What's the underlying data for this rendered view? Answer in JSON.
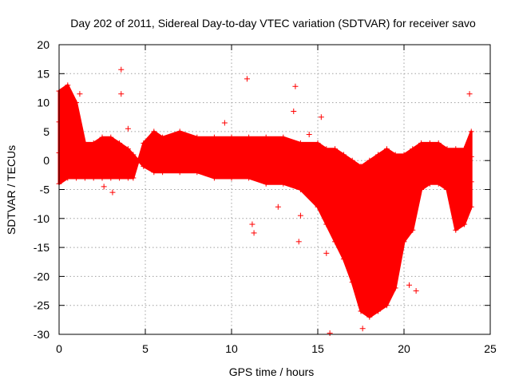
{
  "chart_data": {
    "type": "scatter",
    "title": "Day 202 of 2011, Sidereal Day-to-day VTEC variation (SDTVAR) for receiver savo",
    "xlabel": "GPS time / hours",
    "ylabel": "SDTVAR / TECUs",
    "xlim": [
      0,
      25
    ],
    "ylim": [
      -30,
      20
    ],
    "xticks": [
      0,
      5,
      10,
      15,
      20,
      25
    ],
    "yticks": [
      -30,
      -25,
      -20,
      -15,
      -10,
      -5,
      0,
      5,
      10,
      15,
      20
    ],
    "grid": true,
    "series": [
      {
        "name": "SDTVAR",
        "color": "#ff0000",
        "marker": "+",
        "envelope": [
          {
            "x": 0.0,
            "lo": -4,
            "hi": 12
          },
          {
            "x": 0.5,
            "lo": -3,
            "hi": 13
          },
          {
            "x": 1.0,
            "lo": -3,
            "hi": 10
          },
          {
            "x": 1.5,
            "lo": -3,
            "hi": 3
          },
          {
            "x": 2.0,
            "lo": -3,
            "hi": 3
          },
          {
            "x": 2.5,
            "lo": -3,
            "hi": 4
          },
          {
            "x": 3.0,
            "lo": -3,
            "hi": 4
          },
          {
            "x": 3.5,
            "lo": -3,
            "hi": 3
          },
          {
            "x": 4.0,
            "lo": -3,
            "hi": 2
          },
          {
            "x": 4.3,
            "lo": -3,
            "hi": 1
          },
          {
            "x": 4.6,
            "lo": 0,
            "hi": 0
          },
          {
            "x": 4.9,
            "lo": -1,
            "hi": 3
          },
          {
            "x": 5.5,
            "lo": -2,
            "hi": 5
          },
          {
            "x": 6.0,
            "lo": -2,
            "hi": 4
          },
          {
            "x": 7.0,
            "lo": -2,
            "hi": 5
          },
          {
            "x": 8.0,
            "lo": -2,
            "hi": 4
          },
          {
            "x": 9.0,
            "lo": -3,
            "hi": 4
          },
          {
            "x": 10.0,
            "lo": -3,
            "hi": 4
          },
          {
            "x": 11.0,
            "lo": -3,
            "hi": 4
          },
          {
            "x": 12.0,
            "lo": -4,
            "hi": 4
          },
          {
            "x": 13.0,
            "lo": -4,
            "hi": 4
          },
          {
            "x": 14.0,
            "lo": -5,
            "hi": 3
          },
          {
            "x": 15.0,
            "lo": -8,
            "hi": 3
          },
          {
            "x": 15.5,
            "lo": -11,
            "hi": 2
          },
          {
            "x": 16.0,
            "lo": -14,
            "hi": 2
          },
          {
            "x": 16.5,
            "lo": -17,
            "hi": 1
          },
          {
            "x": 17.0,
            "lo": -21,
            "hi": 0
          },
          {
            "x": 17.5,
            "lo": -26,
            "hi": -1
          },
          {
            "x": 18.0,
            "lo": -27,
            "hi": 0
          },
          {
            "x": 18.5,
            "lo": -26,
            "hi": 1
          },
          {
            "x": 19.0,
            "lo": -25,
            "hi": 2
          },
          {
            "x": 19.5,
            "lo": -22,
            "hi": 1
          },
          {
            "x": 20.0,
            "lo": -14,
            "hi": 1
          },
          {
            "x": 20.5,
            "lo": -12,
            "hi": 2
          },
          {
            "x": 21.0,
            "lo": -5,
            "hi": 3
          },
          {
            "x": 21.5,
            "lo": -4,
            "hi": 3
          },
          {
            "x": 22.0,
            "lo": -4,
            "hi": 3
          },
          {
            "x": 22.5,
            "lo": -5,
            "hi": 2
          },
          {
            "x": 23.0,
            "lo": -12,
            "hi": 2
          },
          {
            "x": 23.5,
            "lo": -11,
            "hi": 2
          },
          {
            "x": 23.9,
            "lo": -8,
            "hi": 5
          }
        ],
        "outliers": [
          {
            "x": 3.6,
            "y": 15.7
          },
          {
            "x": 3.6,
            "y": 11.5
          },
          {
            "x": 1.2,
            "y": 11.5
          },
          {
            "x": 10.9,
            "y": 14.1
          },
          {
            "x": 13.7,
            "y": 12.8
          },
          {
            "x": 13.6,
            "y": 8.5
          },
          {
            "x": 15.2,
            "y": 7.5
          },
          {
            "x": 23.8,
            "y": 11.5
          },
          {
            "x": 3.1,
            "y": -5.5
          },
          {
            "x": 2.6,
            "y": -4.5
          },
          {
            "x": 4.0,
            "y": 5.5
          },
          {
            "x": 11.2,
            "y": -11.0
          },
          {
            "x": 11.3,
            "y": -12.5
          },
          {
            "x": 13.9,
            "y": -14.0
          },
          {
            "x": 14.0,
            "y": -9.5
          },
          {
            "x": 15.7,
            "y": -29.8
          },
          {
            "x": 15.5,
            "y": -16.0
          },
          {
            "x": 20.3,
            "y": -21.5
          },
          {
            "x": 20.7,
            "y": -22.5
          },
          {
            "x": 12.7,
            "y": -8.0
          },
          {
            "x": 9.6,
            "y": 6.5
          },
          {
            "x": 17.6,
            "y": -29.0
          },
          {
            "x": 14.5,
            "y": 4.5
          }
        ]
      }
    ]
  }
}
